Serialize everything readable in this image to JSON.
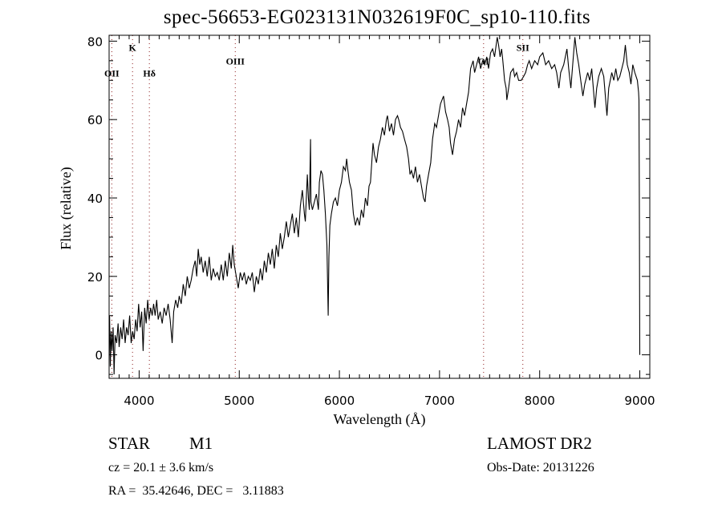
{
  "chart_data": {
    "type": "line",
    "title": "spec-56653-EG023131N032619F0C_sp10-110.fits",
    "xlabel": "Wavelength (Å)",
    "ylabel": "Flux (relative)",
    "xlim": [
      3700,
      9100
    ],
    "ylim": [
      -6,
      81.5
    ],
    "xticks": [
      4000,
      5000,
      6000,
      7000,
      8000,
      9000
    ],
    "yticks": [
      0,
      20,
      40,
      60,
      80
    ],
    "grid": false,
    "line_color": "#000000",
    "marker_color": "#8b1a1a",
    "line_markers": [
      {
        "label": "OII",
        "x": 3727,
        "label_flux": 71
      },
      {
        "label": "K",
        "x": 3934,
        "label_flux": 77.5
      },
      {
        "label": "Hδ",
        "x": 4102,
        "label_flux": 71
      },
      {
        "label": "OIII",
        "x": 4960,
        "label_flux": 74
      },
      {
        "label": "OI",
        "x": 7440,
        "label_flux": 74
      },
      {
        "label": "SII",
        "x": 7832,
        "label_flux": 77.5
      }
    ],
    "series": [
      {
        "name": "spectrum",
        "points": [
          [
            3705,
            10
          ],
          [
            3712,
            -3
          ],
          [
            3720,
            6
          ],
          [
            3730,
            1
          ],
          [
            3740,
            7
          ],
          [
            3750,
            -5
          ],
          [
            3760,
            5
          ],
          [
            3775,
            3
          ],
          [
            3790,
            8
          ],
          [
            3800,
            2
          ],
          [
            3815,
            7
          ],
          [
            3830,
            4
          ],
          [
            3845,
            9
          ],
          [
            3860,
            3
          ],
          [
            3875,
            7
          ],
          [
            3890,
            5
          ],
          [
            3905,
            10
          ],
          [
            3920,
            3
          ],
          [
            3935,
            6
          ],
          [
            3950,
            4
          ],
          [
            3965,
            9
          ],
          [
            3980,
            6
          ],
          [
            3995,
            13
          ],
          [
            4010,
            7
          ],
          [
            4025,
            11
          ],
          [
            4040,
            1
          ],
          [
            4055,
            12
          ],
          [
            4070,
            8
          ],
          [
            4085,
            14
          ],
          [
            4100,
            9
          ],
          [
            4115,
            12
          ],
          [
            4130,
            10
          ],
          [
            4145,
            13
          ],
          [
            4160,
            10
          ],
          [
            4175,
            14
          ],
          [
            4190,
            9
          ],
          [
            4210,
            11
          ],
          [
            4230,
            8
          ],
          [
            4250,
            12
          ],
          [
            4270,
            10
          ],
          [
            4290,
            13
          ],
          [
            4310,
            9
          ],
          [
            4330,
            3
          ],
          [
            4345,
            11
          ],
          [
            4365,
            14
          ],
          [
            4385,
            12
          ],
          [
            4400,
            15
          ],
          [
            4420,
            13
          ],
          [
            4440,
            18
          ],
          [
            4460,
            15
          ],
          [
            4480,
            20
          ],
          [
            4500,
            17
          ],
          [
            4520,
            19
          ],
          [
            4540,
            22
          ],
          [
            4560,
            24
          ],
          [
            4575,
            20
          ],
          [
            4590,
            27
          ],
          [
            4605,
            23
          ],
          [
            4620,
            25
          ],
          [
            4640,
            21
          ],
          [
            4660,
            24
          ],
          [
            4680,
            20
          ],
          [
            4700,
            25
          ],
          [
            4720,
            19
          ],
          [
            4740,
            22
          ],
          [
            4760,
            20
          ],
          [
            4780,
            21
          ],
          [
            4800,
            19
          ],
          [
            4820,
            23
          ],
          [
            4840,
            19
          ],
          [
            4860,
            24
          ],
          [
            4880,
            20
          ],
          [
            4900,
            26
          ],
          [
            4920,
            22
          ],
          [
            4935,
            28
          ],
          [
            4950,
            23
          ],
          [
            4970,
            20
          ],
          [
            4990,
            17
          ],
          [
            5010,
            21
          ],
          [
            5030,
            19
          ],
          [
            5050,
            21
          ],
          [
            5070,
            18
          ],
          [
            5090,
            20
          ],
          [
            5110,
            19
          ],
          [
            5130,
            21
          ],
          [
            5150,
            16
          ],
          [
            5170,
            20
          ],
          [
            5190,
            18
          ],
          [
            5210,
            22
          ],
          [
            5230,
            19
          ],
          [
            5250,
            24
          ],
          [
            5270,
            21
          ],
          [
            5290,
            26
          ],
          [
            5310,
            23
          ],
          [
            5330,
            27
          ],
          [
            5350,
            22
          ],
          [
            5370,
            28
          ],
          [
            5390,
            25
          ],
          [
            5410,
            31
          ],
          [
            5430,
            27
          ],
          [
            5450,
            30
          ],
          [
            5470,
            34
          ],
          [
            5490,
            30
          ],
          [
            5510,
            33
          ],
          [
            5530,
            36
          ],
          [
            5550,
            31
          ],
          [
            5570,
            35
          ],
          [
            5590,
            30
          ],
          [
            5610,
            38
          ],
          [
            5630,
            42
          ],
          [
            5650,
            36
          ],
          [
            5660,
            34
          ],
          [
            5680,
            46
          ],
          [
            5690,
            40
          ],
          [
            5700,
            37
          ],
          [
            5712,
            55
          ],
          [
            5716,
            39
          ],
          [
            5730,
            37
          ],
          [
            5750,
            39
          ],
          [
            5770,
            41
          ],
          [
            5790,
            37
          ],
          [
            5800,
            44
          ],
          [
            5816,
            47
          ],
          [
            5830,
            46
          ],
          [
            5845,
            42
          ],
          [
            5860,
            36
          ],
          [
            5875,
            28
          ],
          [
            5888,
            10
          ],
          [
            5895,
            25
          ],
          [
            5905,
            33
          ],
          [
            5920,
            36
          ],
          [
            5940,
            39
          ],
          [
            5960,
            40
          ],
          [
            5980,
            38
          ],
          [
            6000,
            42
          ],
          [
            6020,
            44
          ],
          [
            6040,
            48
          ],
          [
            6060,
            47
          ],
          [
            6072,
            50
          ],
          [
            6085,
            47
          ],
          [
            6100,
            44
          ],
          [
            6120,
            42
          ],
          [
            6140,
            36
          ],
          [
            6160,
            33
          ],
          [
            6180,
            35
          ],
          [
            6200,
            33
          ],
          [
            6220,
            37
          ],
          [
            6240,
            35
          ],
          [
            6260,
            40
          ],
          [
            6280,
            38
          ],
          [
            6296,
            43
          ],
          [
            6310,
            44
          ],
          [
            6336,
            54
          ],
          [
            6350,
            51
          ],
          [
            6370,
            49
          ],
          [
            6390,
            53
          ],
          [
            6410,
            55
          ],
          [
            6430,
            58
          ],
          [
            6450,
            56
          ],
          [
            6470,
            60
          ],
          [
            6480,
            61
          ],
          [
            6500,
            57
          ],
          [
            6520,
            59
          ],
          [
            6540,
            56
          ],
          [
            6560,
            60
          ],
          [
            6580,
            61
          ],
          [
            6592,
            60
          ],
          [
            6610,
            58
          ],
          [
            6630,
            57
          ],
          [
            6650,
            55
          ],
          [
            6672,
            53
          ],
          [
            6690,
            50
          ],
          [
            6705,
            46
          ],
          [
            6720,
            47
          ],
          [
            6740,
            45
          ],
          [
            6760,
            48
          ],
          [
            6780,
            44
          ],
          [
            6800,
            46
          ],
          [
            6820,
            43
          ],
          [
            6840,
            40
          ],
          [
            6856,
            39
          ],
          [
            6870,
            43
          ],
          [
            6890,
            46
          ],
          [
            6912,
            49
          ],
          [
            6930,
            55
          ],
          [
            6952,
            59
          ],
          [
            6970,
            58
          ],
          [
            6990,
            61
          ],
          [
            7010,
            64
          ],
          [
            7025,
            65
          ],
          [
            7040,
            66
          ],
          [
            7060,
            62
          ],
          [
            7080,
            60
          ],
          [
            7096,
            58
          ],
          [
            7110,
            54
          ],
          [
            7130,
            51
          ],
          [
            7150,
            55
          ],
          [
            7170,
            57
          ],
          [
            7190,
            60
          ],
          [
            7210,
            58
          ],
          [
            7230,
            63
          ],
          [
            7250,
            61
          ],
          [
            7270,
            64
          ],
          [
            7290,
            67
          ],
          [
            7310,
            73
          ],
          [
            7336,
            75
          ],
          [
            7350,
            72
          ],
          [
            7370,
            74
          ],
          [
            7390,
            76
          ],
          [
            7410,
            73
          ],
          [
            7430,
            75
          ],
          [
            7450,
            74
          ],
          [
            7472,
            76
          ],
          [
            7490,
            73
          ],
          [
            7510,
            77
          ],
          [
            7530,
            78
          ],
          [
            7550,
            76
          ],
          [
            7576,
            81
          ],
          [
            7590,
            79
          ],
          [
            7605,
            76
          ],
          [
            7620,
            78
          ],
          [
            7632,
            75
          ],
          [
            7650,
            70
          ],
          [
            7665,
            68
          ],
          [
            7672,
            65
          ],
          [
            7690,
            68
          ],
          [
            7710,
            72
          ],
          [
            7736,
            73
          ],
          [
            7750,
            71
          ],
          [
            7770,
            72
          ],
          [
            7790,
            70
          ],
          [
            7816,
            70
          ],
          [
            7840,
            71
          ],
          [
            7860,
            72
          ],
          [
            7880,
            74
          ],
          [
            7896,
            75
          ],
          [
            7920,
            73
          ],
          [
            7950,
            75
          ],
          [
            7980,
            74
          ],
          [
            8000,
            76
          ],
          [
            8032,
            77
          ],
          [
            8060,
            74
          ],
          [
            8090,
            75
          ],
          [
            8120,
            73
          ],
          [
            8150,
            74
          ],
          [
            8170,
            72
          ],
          [
            8192,
            68
          ],
          [
            8210,
            72
          ],
          [
            8240,
            74
          ],
          [
            8272,
            78
          ],
          [
            8290,
            73
          ],
          [
            8312,
            68
          ],
          [
            8330,
            74
          ],
          [
            8352,
            81
          ],
          [
            8370,
            77
          ],
          [
            8390,
            74
          ],
          [
            8410,
            70
          ],
          [
            8432,
            66
          ],
          [
            8450,
            69
          ],
          [
            8480,
            72
          ],
          [
            8500,
            70
          ],
          [
            8520,
            73
          ],
          [
            8552,
            63
          ],
          [
            8570,
            68
          ],
          [
            8590,
            71
          ],
          [
            8616,
            73
          ],
          [
            8640,
            71
          ],
          [
            8672,
            61
          ],
          [
            8690,
            68
          ],
          [
            8720,
            72
          ],
          [
            8740,
            70
          ],
          [
            8760,
            73
          ],
          [
            8780,
            70
          ],
          [
            8800,
            71
          ],
          [
            8820,
            73
          ],
          [
            8840,
            75
          ],
          [
            8856,
            79
          ],
          [
            8875,
            74
          ],
          [
            8895,
            72
          ],
          [
            8912,
            69
          ],
          [
            8930,
            74
          ],
          [
            8950,
            72
          ],
          [
            8976,
            70
          ],
          [
            8988,
            67
          ],
          [
            8992,
            65
          ],
          [
            8996,
            38
          ],
          [
            9000,
            0
          ]
        ]
      }
    ]
  },
  "info": {
    "object_class": "STAR",
    "subclass": "M1",
    "survey": "LAMOST DR2",
    "cz": "cz = 20.1 ± 3.6 km/s",
    "obs_date": "Obs-Date: 20131226",
    "coords": "RA =  35.42646, DEC =   3.11883"
  }
}
